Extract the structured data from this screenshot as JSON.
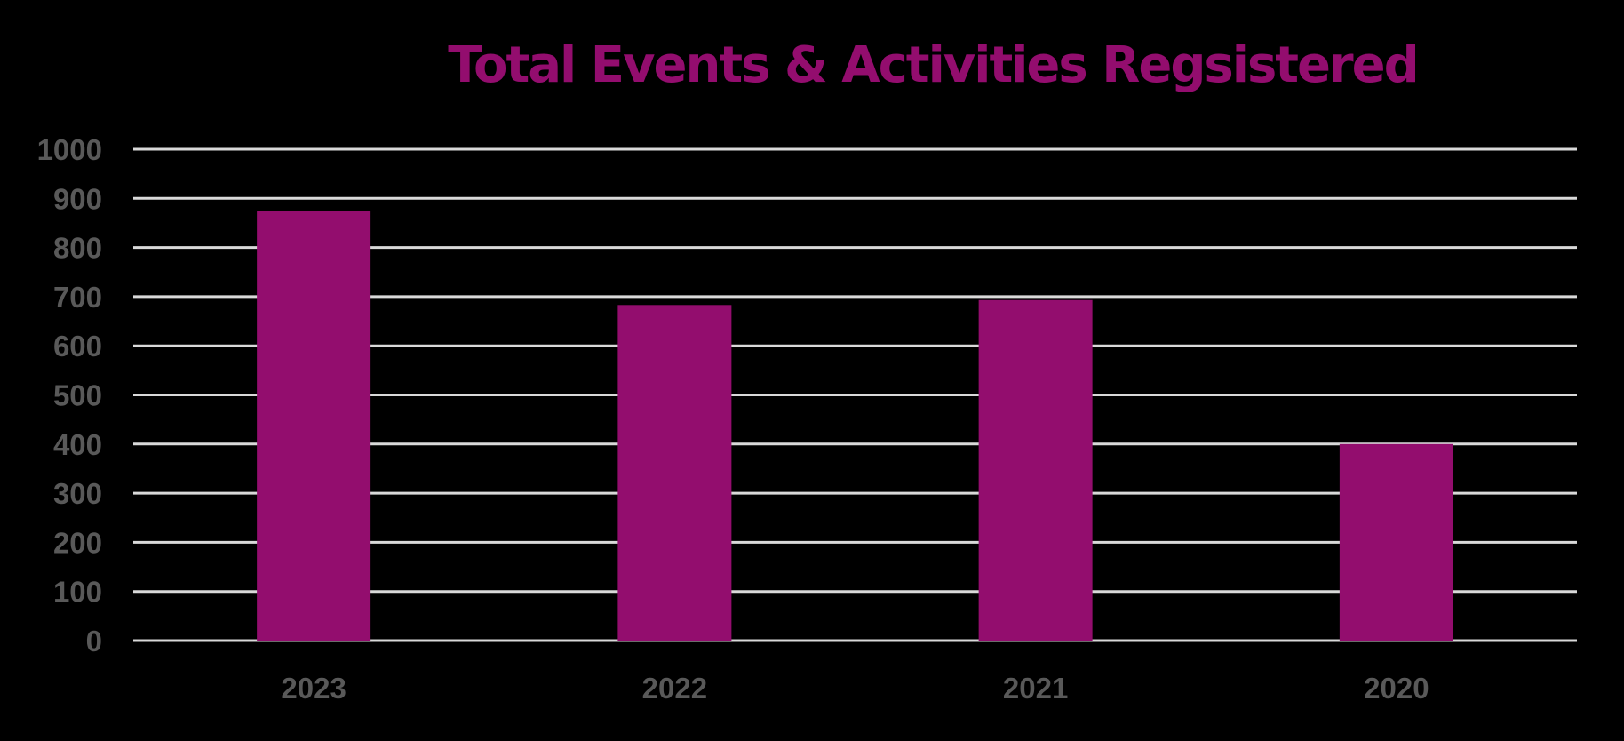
{
  "chart_data": {
    "type": "bar",
    "title": "Total Events & Activities Regsistered",
    "xlabel": "",
    "ylabel": "",
    "categories": [
      "2023",
      "2022",
      "2021",
      "2020"
    ],
    "values": [
      875,
      683,
      693,
      400
    ],
    "ylim": [
      0,
      1000
    ],
    "yticks": [
      0,
      100,
      200,
      300,
      400,
      500,
      600,
      700,
      800,
      900,
      1000
    ],
    "grid": true,
    "legend": "none"
  },
  "colors": {
    "background": "#000000",
    "bar": "#930D6E",
    "title": "#930D6E",
    "gridline": "#D9D9D9",
    "tick_label": "#595959"
  }
}
